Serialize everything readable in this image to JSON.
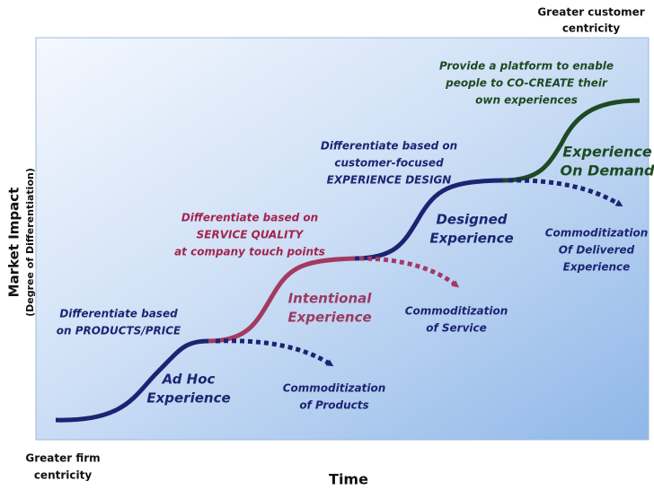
{
  "corner_labels": {
    "top_right": [
      "Greater customer",
      "centricity"
    ],
    "bottom_left": [
      "Greater firm",
      "centricity"
    ]
  },
  "axes": {
    "y": [
      "Market Impact",
      "(Degree of Differentiation)"
    ],
    "x": "Time"
  },
  "stages": [
    {
      "strategy": [
        "Differentiate based",
        "on PRODUCTS/PRICE"
      ],
      "name": [
        "Ad Hoc",
        "Experience"
      ],
      "commoditization": [
        "Commoditization",
        "of Products"
      ]
    },
    {
      "strategy": [
        "Differentiate based on",
        "SERVICE QUALITY",
        "at company touch points"
      ],
      "name": [
        "Intentional",
        "Experience"
      ],
      "commoditization": [
        "Commoditization",
        "of Service"
      ]
    },
    {
      "strategy": [
        "Differentiate based on",
        "customer-focused",
        "EXPERIENCE DESIGN"
      ],
      "name": [
        "Designed",
        "Experience"
      ],
      "commoditization": [
        "Commoditization",
        "Of Delivered",
        "Experience"
      ]
    },
    {
      "strategy": [
        "Provide a platform to enable",
        "people to CO-CREATE their",
        "own experiences"
      ],
      "name": [
        "Experience",
        "On Demand"
      ]
    }
  ]
}
